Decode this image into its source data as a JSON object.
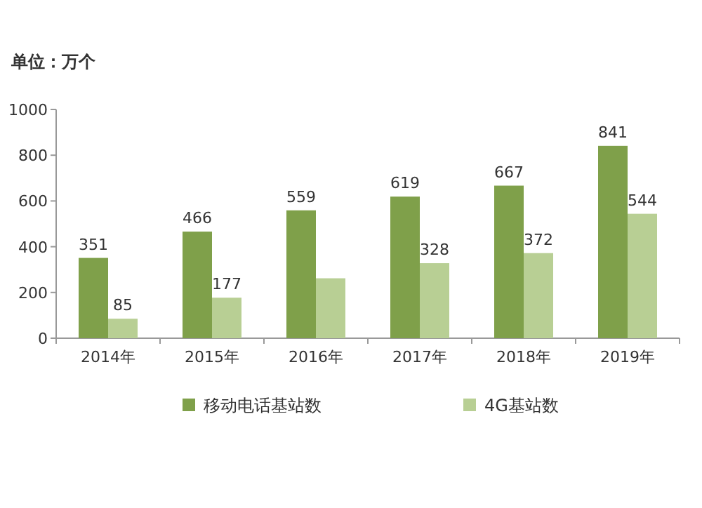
{
  "chart_data": {
    "type": "bar",
    "ylabel": "单位：万个",
    "categories": [
      "2014年",
      "2015年",
      "2016年",
      "2017年",
      "2018年",
      "2019年"
    ],
    "series": [
      {
        "name": "移动电话基站数",
        "color": "#7fa04a",
        "values": [
          351,
          466,
          559,
          619,
          667,
          841
        ],
        "value_labels": [
          "351",
          "466",
          "559",
          "619",
          "667",
          "841"
        ]
      },
      {
        "name": "4G基站数",
        "color": "#b8cf94",
        "values": [
          85,
          177,
          262,
          328,
          372,
          544
        ],
        "value_labels": [
          "85",
          "177",
          null,
          "328",
          "372",
          "544"
        ]
      }
    ],
    "ylim": [
      0,
      1000
    ],
    "yticks": [
      0,
      200,
      400,
      600,
      800,
      1000
    ],
    "grid": false,
    "legend": "bottom"
  }
}
